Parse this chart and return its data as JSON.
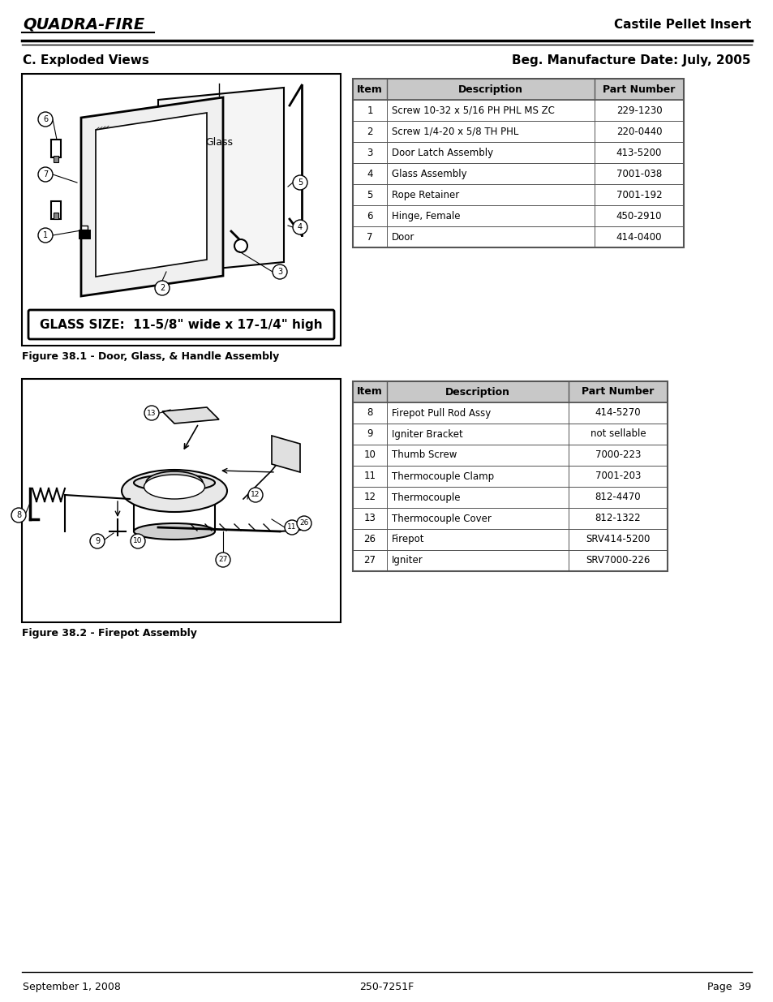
{
  "page_title_right": "Castile Pellet Insert",
  "section_left": "C. Exploded Views",
  "section_right": "Beg. Manufacture Date: July, 2005",
  "logo_text": "QUADRA-FIRE",
  "fig1_caption": "Figure 38.1 - Door, Glass, & Handle Assembly",
  "fig2_caption": "Figure 38.2 - Firepot Assembly",
  "glass_size_text": "GLASS SIZE:  11-5/8\" wide x 17-1/4\" high",
  "table1_headers": [
    "Item",
    "Description",
    "Part Number"
  ],
  "table1_rows": [
    [
      "1",
      "Screw 10-32 x 5/16 PH PHL MS ZC",
      "229-1230"
    ],
    [
      "2",
      "Screw 1/4-20 x 5/8 TH PHL",
      "220-0440"
    ],
    [
      "3",
      "Door Latch Assembly",
      "413-5200"
    ],
    [
      "4",
      "Glass Assembly",
      "7001-038"
    ],
    [
      "5",
      "Rope Retainer",
      "7001-192"
    ],
    [
      "6",
      "Hinge, Female",
      "450-2910"
    ],
    [
      "7",
      "Door",
      "414-0400"
    ]
  ],
  "table2_headers": [
    "Item",
    "Description",
    "Part Number"
  ],
  "table2_rows": [
    [
      "8",
      "Firepot Pull Rod Assy",
      "414-5270"
    ],
    [
      "9",
      "Igniter Bracket",
      "not sellable"
    ],
    [
      "10",
      "Thumb Screw",
      "7000-223"
    ],
    [
      "11",
      "Thermocouple Clamp",
      "7001-203"
    ],
    [
      "12",
      "Thermocouple",
      "812-4470"
    ],
    [
      "13",
      "Thermocouple Cover",
      "812-1322"
    ],
    [
      "26",
      "Firepot",
      "SRV414-5200"
    ],
    [
      "27",
      "Igniter",
      "SRV7000-226"
    ]
  ],
  "footer_left": "September 1, 2008",
  "footer_center": "250-7251F",
  "footer_right": "Page  39",
  "header_bg": "#c8c8c8",
  "table_border": "#555555",
  "bg_color": "#ffffff"
}
